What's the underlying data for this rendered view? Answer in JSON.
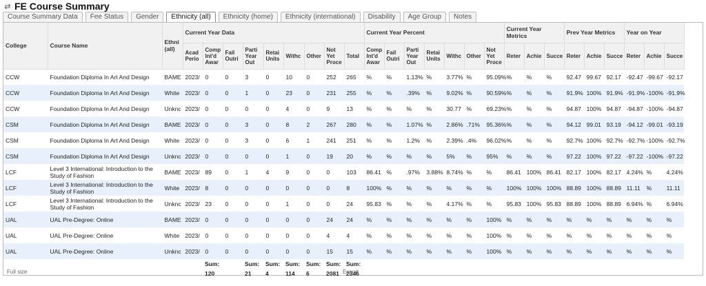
{
  "app": {
    "title": "FE Course Summary",
    "refresh_icon": "refresh-icon"
  },
  "tabs": [
    {
      "label": "Course Summary Data",
      "active": false
    },
    {
      "label": "Fee Status",
      "active": false
    },
    {
      "label": "Gender",
      "active": false
    },
    {
      "label": "Ethnicity (all)",
      "active": true
    },
    {
      "label": "Ethnicity (home)",
      "active": false
    },
    {
      "label": "Ethnicity (international)",
      "active": false
    },
    {
      "label": "Disability",
      "active": false
    },
    {
      "label": "Age Group",
      "active": false
    },
    {
      "label": "Notes",
      "active": false
    }
  ],
  "table": {
    "groups": {
      "college": "College",
      "course": "Course Name",
      "ethnicity": "Ethni (all)",
      "current_year_data": "Current Year Data",
      "current_year_percent": "Current Year Percent",
      "current_year_metrics": "Current Year Metrics",
      "prev_year_metrics": "Prev Year Metrics",
      "year_on_year": "Year on Year"
    },
    "sub_headers": [
      "Acad Perio",
      "Comp Int'd Awar",
      "Fail Outri",
      "Parti Year Out",
      "Retai Units",
      "Withc",
      "Other",
      "Not Yet Proce",
      "Total",
      "Comp Int'd Awar",
      "Fail Outri",
      "Parti Year Out",
      "Retai Units",
      "Withc",
      "Other",
      "Not Yet Proce",
      "Reter",
      "Achie",
      "Succe",
      "Reter",
      "Achie",
      "Succe",
      "Reter",
      "Achie",
      "Succe"
    ],
    "rows": [
      {
        "college": "CCW",
        "course": "Foundation Diploma In Art And Design",
        "eth": "BAME",
        "cells": [
          "2023/",
          "0",
          "0",
          "3",
          "0",
          "10",
          "0",
          "252",
          "265",
          "%",
          "%",
          "1.13%",
          "%",
          "3.77%",
          "%",
          "95.09%",
          "%",
          "%",
          "%",
          "92.47",
          "99.67",
          "92.17",
          "-92.47",
          "-99.67",
          "-92.17"
        ]
      },
      {
        "college": "CCW",
        "course": "Foundation Diploma In Art And Design",
        "eth": "White",
        "cells": [
          "2023/",
          "0",
          "0",
          "1",
          "0",
          "23",
          "0",
          "231",
          "255",
          "%",
          "%",
          ".39%",
          "%",
          "9.02%",
          "%",
          "90.59%",
          "%",
          "%",
          "%",
          "91.9%",
          "100%",
          "91.9%",
          "-91.9%",
          "-100%",
          "-91.9%"
        ]
      },
      {
        "college": "CCW",
        "course": "Foundation Diploma In Art And Design",
        "eth": "Unknc",
        "cells": [
          "2023/",
          "0",
          "0",
          "0",
          "0",
          "4",
          "0",
          "9",
          "13",
          "%",
          "%",
          "%",
          "%",
          "30.77",
          "%",
          "69.23%",
          "%",
          "%",
          "%",
          "94.87",
          "100%",
          "94.87",
          "-94.87",
          "-100%",
          "-94.87"
        ]
      },
      {
        "college": "CSM",
        "course": "Foundation Diploma In Art And Design",
        "eth": "BAME",
        "cells": [
          "2023/",
          "0",
          "0",
          "3",
          "0",
          "8",
          "2",
          "267",
          "280",
          "%",
          "%",
          "1.07%",
          "%",
          "2.86%",
          ".71%",
          "95.36%",
          "%",
          "%",
          "%",
          "94.12",
          "99.01",
          "93.19",
          "-94.12",
          "-99.01",
          "-93.19"
        ]
      },
      {
        "college": "CSM",
        "course": "Foundation Diploma In Art And Design",
        "eth": "White",
        "cells": [
          "2023/",
          "0",
          "0",
          "3",
          "0",
          "6",
          "1",
          "241",
          "251",
          "%",
          "%",
          "1.2%",
          "%",
          "2.39%",
          ".4%",
          "96.02%",
          "%",
          "%",
          "%",
          "92.7%",
          "100%",
          "92.7%",
          "-92.7%",
          "-100%",
          "-92.7%"
        ]
      },
      {
        "college": "CSM",
        "course": "Foundation Diploma In Art And Design",
        "eth": "Unknc",
        "cells": [
          "2023/",
          "0",
          "0",
          "0",
          "0",
          "1",
          "0",
          "19",
          "20",
          "%",
          "%",
          "%",
          "%",
          "5%",
          "%",
          "95%",
          "%",
          "%",
          "%",
          "97.22",
          "100%",
          "97.22",
          "-97.22",
          "-100%",
          "-97.22"
        ]
      },
      {
        "college": "LCF",
        "course": "Level 3 International: Introduction to the Study of Fashion",
        "eth": "BAME",
        "cells": [
          "2023/",
          "89",
          "0",
          "1",
          "4",
          "9",
          "0",
          "0",
          "103",
          "86.41",
          "%",
          ".97%",
          "3.88%",
          "8.74%",
          "%",
          "%",
          "86.41",
          "100%",
          "86.41",
          "82.17",
          "100%",
          "82.17",
          "4.24%",
          "%",
          "4.24%"
        ]
      },
      {
        "college": "LCF",
        "course": "Level 3 International: Introduction to the Study of Fashion",
        "eth": "White",
        "cells": [
          "2023/",
          "8",
          "0",
          "0",
          "0",
          "0",
          "0",
          "0",
          "8",
          "100%",
          "%",
          "%",
          "%",
          "%",
          "%",
          "%",
          "100%",
          "100%",
          "100%",
          "88.89",
          "100%",
          "88.89",
          "11.11",
          "%",
          "11.11"
        ]
      },
      {
        "college": "LCF",
        "course": "Level 3 International: Introduction to the Study of Fashion",
        "eth": "Unknc",
        "cells": [
          "2023/",
          "23",
          "0",
          "0",
          "0",
          "1",
          "0",
          "0",
          "24",
          "95.83",
          "%",
          "%",
          "%",
          "4.17%",
          "%",
          "%",
          "95.83",
          "100%",
          "95.83",
          "88.89",
          "100%",
          "88.89",
          "6.94%",
          "%",
          "6.94%"
        ]
      },
      {
        "college": "UAL",
        "course": "UAL Pre-Degree: Online",
        "eth": "BAME",
        "cells": [
          "2023/",
          "0",
          "0",
          "0",
          "0",
          "0",
          "0",
          "24",
          "24",
          "%",
          "%",
          "%",
          "%",
          "%",
          "%",
          "100%",
          "%",
          "%",
          "%",
          "%",
          "%",
          "%",
          "%",
          "%",
          "%"
        ]
      },
      {
        "college": "UAL",
        "course": "UAL Pre-Degree: Online",
        "eth": "White",
        "cells": [
          "2023/",
          "0",
          "0",
          "0",
          "0",
          "0",
          "0",
          "4",
          "4",
          "%",
          "%",
          "%",
          "%",
          "%",
          "%",
          "100%",
          "%",
          "%",
          "%",
          "%",
          "%",
          "%",
          "%",
          "%",
          "%"
        ]
      },
      {
        "college": "UAL",
        "course": "UAL Pre-Degree: Online",
        "eth": "Unknc",
        "cells": [
          "2023/",
          "0",
          "0",
          "0",
          "0",
          "0",
          "0",
          "15",
          "15",
          "%",
          "%",
          "%",
          "%",
          "%",
          "%",
          "100%",
          "%",
          "%",
          "%",
          "%",
          "%",
          "%",
          "%",
          "%",
          "%"
        ]
      }
    ],
    "sum_label": "Sum:",
    "sums": {
      "comp": "120",
      "parti": "21",
      "retai": "4",
      "withc": "114",
      "other": "6",
      "notyet": "2081",
      "total": "2346"
    }
  },
  "footer": {
    "full_size": "Full size",
    "export": "Export"
  }
}
